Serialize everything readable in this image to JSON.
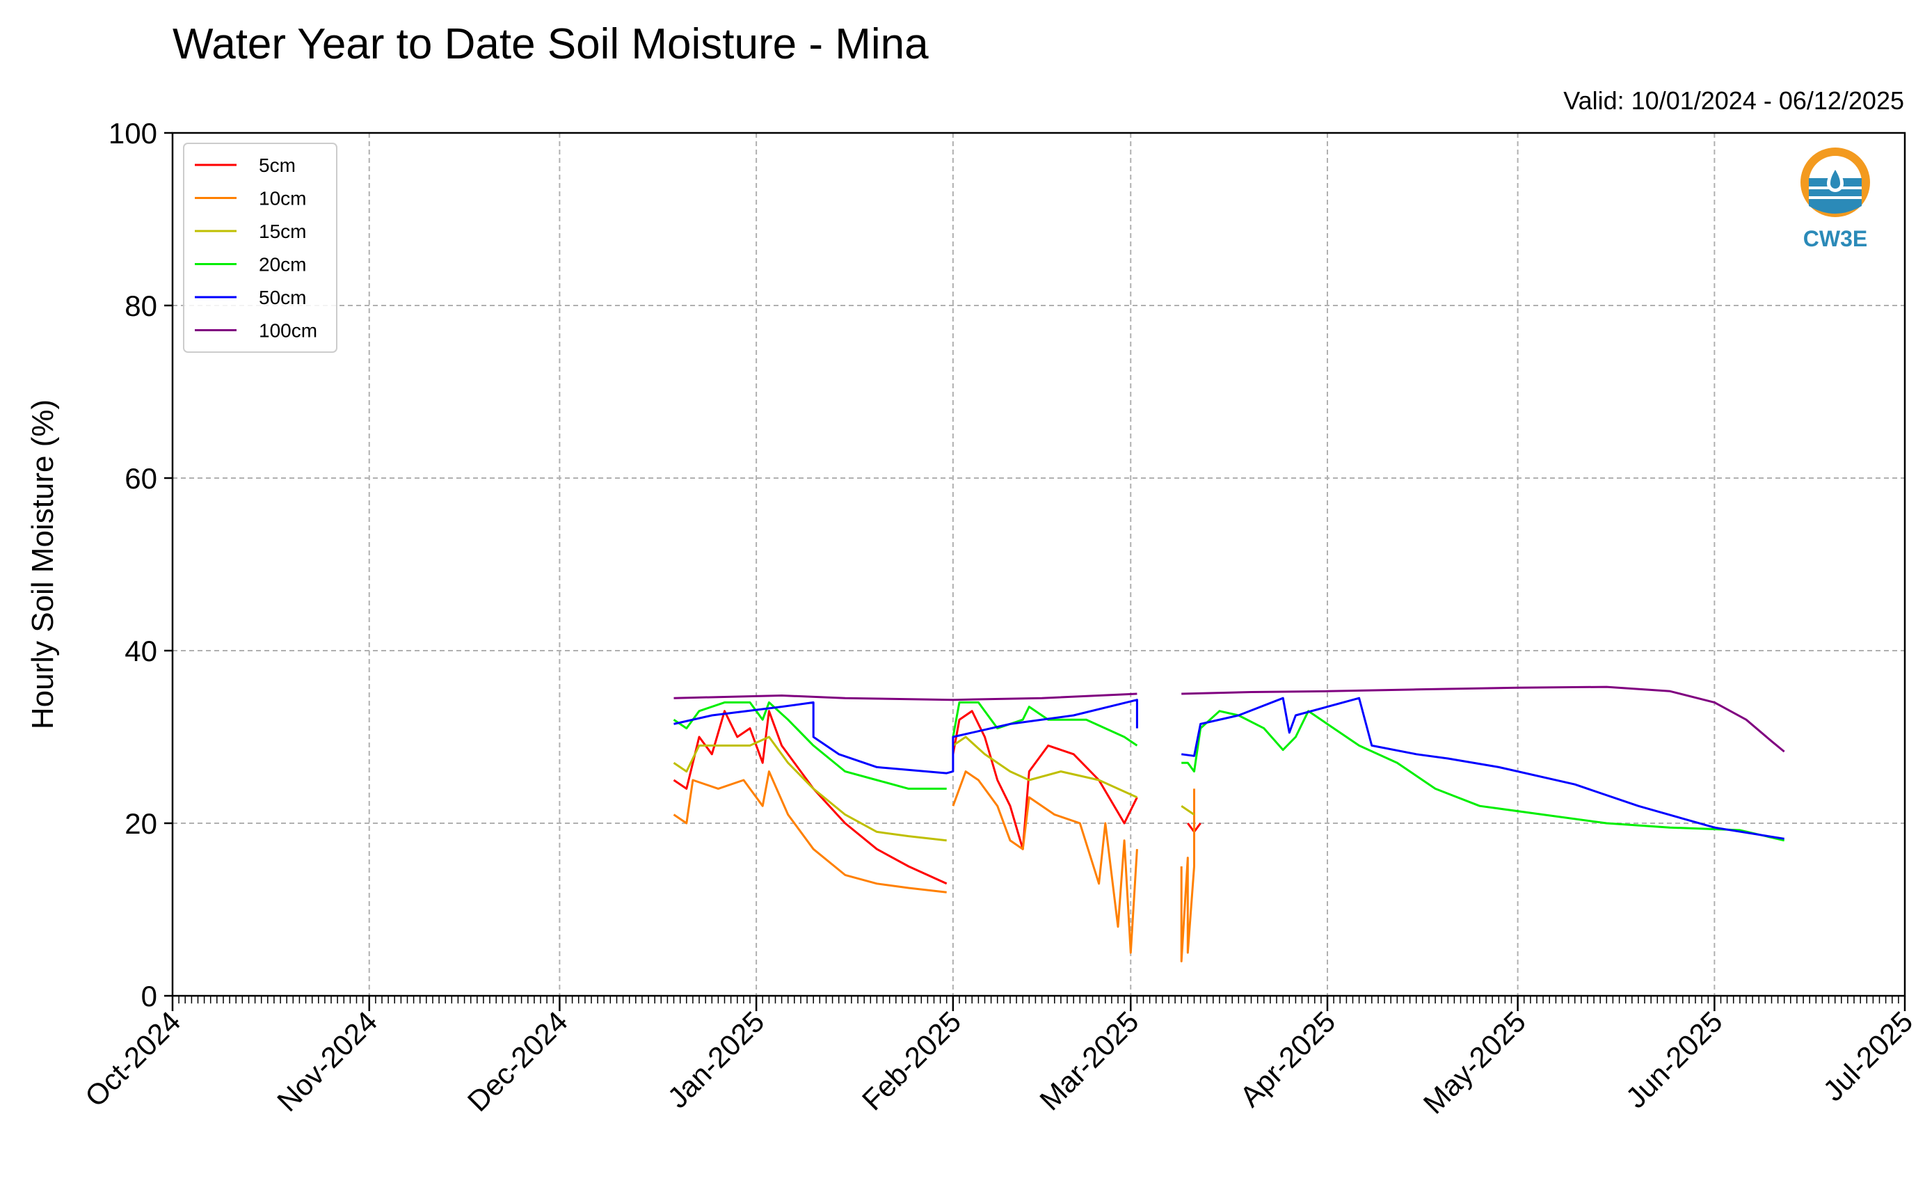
{
  "title": "Water Year to Date Soil Moisture - Mina",
  "valid_text": "Valid: 10/01/2024 - 06/12/2025",
  "logo": {
    "text": "CW3E",
    "icon": "cw3e-logo-icon",
    "colors": {
      "orange": "#f39a1f",
      "blue": "#2b8ab8"
    }
  },
  "chart_data": {
    "type": "line",
    "title": "Water Year to Date Soil Moisture - Mina",
    "xlabel": "",
    "ylabel": "Hourly Soil Moisture (%)",
    "xlim": [
      "2024-10-01",
      "2025-07-01"
    ],
    "ylim": [
      0,
      100
    ],
    "yticks": [
      0,
      20,
      40,
      60,
      80,
      100
    ],
    "xticks": [
      "Oct-2024",
      "Nov-2024",
      "Dec-2024",
      "Jan-2025",
      "Feb-2025",
      "Mar-2025",
      "Apr-2025",
      "May-2025",
      "Jun-2025",
      "Jul-2025"
    ],
    "xtick_dates": [
      "2024-10-01",
      "2024-11-01",
      "2024-12-01",
      "2025-01-01",
      "2025-02-01",
      "2025-03-01",
      "2025-04-01",
      "2025-05-01",
      "2025-06-01",
      "2025-07-01"
    ],
    "grid": true,
    "legend_position": "top-left",
    "series": [
      {
        "name": "5cm",
        "color": "#ff0000",
        "points": [
          [
            "2024-12-19",
            25
          ],
          [
            "2024-12-21",
            24
          ],
          [
            "2024-12-23",
            30
          ],
          [
            "2024-12-25",
            28
          ],
          [
            "2024-12-27",
            33
          ],
          [
            "2024-12-29",
            30
          ],
          [
            "2024-12-31",
            31
          ],
          [
            "2025-01-02",
            27
          ],
          [
            "2025-01-03",
            33
          ],
          [
            "2025-01-05",
            29
          ],
          [
            "2025-01-10",
            24
          ],
          [
            "2025-01-15",
            20
          ],
          [
            "2025-01-20",
            17
          ],
          [
            "2025-01-25",
            15
          ],
          [
            "2025-01-31",
            13
          ],
          null,
          [
            "2025-02-01",
            28
          ],
          [
            "2025-02-02",
            32
          ],
          [
            "2025-02-04",
            33
          ],
          [
            "2025-02-06",
            30
          ],
          [
            "2025-02-08",
            25
          ],
          [
            "2025-02-10",
            22
          ],
          [
            "2025-02-12",
            17
          ],
          [
            "2025-02-13",
            26
          ],
          [
            "2025-02-16",
            29
          ],
          [
            "2025-02-20",
            28
          ],
          [
            "2025-02-24",
            25
          ],
          [
            "2025-02-28",
            20
          ],
          [
            "2025-03-02",
            23
          ],
          null,
          [
            "2025-03-10",
            20
          ],
          [
            "2025-03-11",
            19
          ],
          [
            "2025-03-12",
            20
          ]
        ]
      },
      {
        "name": "10cm",
        "color": "#ff8000",
        "points": [
          [
            "2024-12-19",
            21
          ],
          [
            "2024-12-21",
            20
          ],
          [
            "2024-12-22",
            25
          ],
          [
            "2024-12-26",
            24
          ],
          [
            "2024-12-30",
            25
          ],
          [
            "2025-01-02",
            22
          ],
          [
            "2025-01-03",
            26
          ],
          [
            "2025-01-06",
            21
          ],
          [
            "2025-01-10",
            17
          ],
          [
            "2025-01-15",
            14
          ],
          [
            "2025-01-20",
            13
          ],
          [
            "2025-01-25",
            12.5
          ],
          [
            "2025-01-31",
            12
          ],
          null,
          [
            "2025-02-01",
            22
          ],
          [
            "2025-02-03",
            26
          ],
          [
            "2025-02-05",
            25
          ],
          [
            "2025-02-08",
            22
          ],
          [
            "2025-02-10",
            18
          ],
          [
            "2025-02-12",
            17
          ],
          [
            "2025-02-13",
            23
          ],
          [
            "2025-02-17",
            21
          ],
          [
            "2025-02-21",
            20
          ],
          [
            "2025-02-24",
            13
          ],
          [
            "2025-02-25",
            20
          ],
          [
            "2025-02-27",
            8
          ],
          [
            "2025-02-28",
            18
          ],
          [
            "2025-03-01",
            5
          ],
          [
            "2025-03-02",
            17
          ],
          null,
          [
            "2025-03-09",
            15
          ],
          [
            "2025-03-09",
            4
          ],
          [
            "2025-03-10",
            16
          ],
          [
            "2025-03-10",
            5
          ],
          [
            "2025-03-11",
            15
          ],
          [
            "2025-03-11",
            24
          ]
        ]
      },
      {
        "name": "15cm",
        "color": "#bfbf00",
        "points": [
          [
            "2024-12-19",
            27
          ],
          [
            "2024-12-21",
            26
          ],
          [
            "2024-12-23",
            29
          ],
          [
            "2024-12-27",
            29
          ],
          [
            "2024-12-31",
            29
          ],
          [
            "2025-01-03",
            30
          ],
          [
            "2025-01-06",
            27
          ],
          [
            "2025-01-10",
            24
          ],
          [
            "2025-01-15",
            21
          ],
          [
            "2025-01-20",
            19
          ],
          [
            "2025-01-25",
            18.5
          ],
          [
            "2025-01-31",
            18
          ],
          null,
          [
            "2025-02-01",
            29
          ],
          [
            "2025-02-03",
            30
          ],
          [
            "2025-02-06",
            28
          ],
          [
            "2025-02-10",
            26
          ],
          [
            "2025-02-13",
            25
          ],
          [
            "2025-02-18",
            26
          ],
          [
            "2025-02-24",
            25
          ],
          [
            "2025-03-02",
            23
          ],
          null,
          [
            "2025-03-09",
            22
          ],
          [
            "2025-03-11",
            21
          ]
        ]
      },
      {
        "name": "20cm",
        "color": "#00ee00",
        "points": [
          [
            "2024-12-19",
            32
          ],
          [
            "2024-12-21",
            31
          ],
          [
            "2024-12-23",
            33
          ],
          [
            "2024-12-27",
            34
          ],
          [
            "2024-12-31",
            34
          ],
          [
            "2025-01-02",
            32
          ],
          [
            "2025-01-03",
            34
          ],
          [
            "2025-01-06",
            32
          ],
          [
            "2025-01-10",
            29
          ],
          [
            "2025-01-15",
            26
          ],
          [
            "2025-01-20",
            25
          ],
          [
            "2025-01-25",
            24
          ],
          [
            "2025-01-31",
            24
          ],
          null,
          [
            "2025-02-01",
            30
          ],
          [
            "2025-02-02",
            34
          ],
          [
            "2025-02-05",
            34
          ],
          [
            "2025-02-08",
            31
          ],
          [
            "2025-02-12",
            32
          ],
          [
            "2025-02-13",
            33.5
          ],
          [
            "2025-02-16",
            32
          ],
          [
            "2025-02-22",
            32
          ],
          [
            "2025-02-28",
            30
          ],
          [
            "2025-03-02",
            29
          ],
          null,
          [
            "2025-03-09",
            27
          ],
          [
            "2025-03-10",
            27
          ],
          [
            "2025-03-11",
            26
          ],
          [
            "2025-03-12",
            31
          ],
          [
            "2025-03-15",
            33
          ],
          [
            "2025-03-18",
            32.5
          ],
          [
            "2025-03-22",
            31
          ],
          [
            "2025-03-25",
            28.5
          ],
          [
            "2025-03-27",
            30
          ],
          [
            "2025-03-29",
            33
          ],
          [
            "2025-04-02",
            31
          ],
          [
            "2025-04-06",
            29
          ],
          [
            "2025-04-12",
            27
          ],
          [
            "2025-04-18",
            24
          ],
          [
            "2025-04-25",
            22
          ],
          [
            "2025-05-05",
            21
          ],
          [
            "2025-05-15",
            20
          ],
          [
            "2025-05-25",
            19.5
          ],
          [
            "2025-06-05",
            19.2
          ],
          [
            "2025-06-12",
            18
          ]
        ]
      },
      {
        "name": "50cm",
        "color": "#0000ff",
        "points": [
          [
            "2024-12-19",
            31.5
          ],
          [
            "2024-12-25",
            32.5
          ],
          [
            "2025-01-05",
            33.5
          ],
          [
            "2025-01-10",
            34
          ],
          [
            "2025-01-10",
            30
          ],
          [
            "2025-01-14",
            28
          ],
          [
            "2025-01-20",
            26.5
          ],
          [
            "2025-01-31",
            25.8
          ],
          [
            "2025-02-01",
            26
          ],
          [
            "2025-02-01",
            30
          ],
          [
            "2025-02-10",
            31.5
          ],
          [
            "2025-02-20",
            32.5
          ],
          [
            "2025-03-02",
            34.3
          ],
          [
            "2025-03-02",
            31
          ],
          null,
          [
            "2025-03-09",
            28
          ],
          [
            "2025-03-11",
            27.8
          ],
          [
            "2025-03-12",
            31.5
          ],
          [
            "2025-03-18",
            32.5
          ],
          [
            "2025-03-25",
            34.5
          ],
          [
            "2025-03-26",
            30.5
          ],
          [
            "2025-03-27",
            32.5
          ],
          [
            "2025-04-01",
            33.5
          ],
          [
            "2025-04-06",
            34.5
          ],
          [
            "2025-04-08",
            29
          ],
          [
            "2025-04-15",
            28
          ],
          [
            "2025-04-20",
            27.5
          ],
          [
            "2025-04-28",
            26.5
          ],
          [
            "2025-05-10",
            24.5
          ],
          [
            "2025-05-20",
            22
          ],
          [
            "2025-06-01",
            19.5
          ],
          [
            "2025-06-12",
            18.2
          ]
        ]
      },
      {
        "name": "100cm",
        "color": "#800080",
        "points": [
          [
            "2024-12-19",
            34.5
          ],
          [
            "2025-01-05",
            34.8
          ],
          [
            "2025-01-15",
            34.5
          ],
          [
            "2025-02-01",
            34.3
          ],
          [
            "2025-02-15",
            34.5
          ],
          [
            "2025-03-02",
            35
          ],
          null,
          [
            "2025-03-09",
            35
          ],
          [
            "2025-03-20",
            35.2
          ],
          [
            "2025-04-01",
            35.3
          ],
          [
            "2025-04-15",
            35.5
          ],
          [
            "2025-05-01",
            35.7
          ],
          [
            "2025-05-15",
            35.8
          ],
          [
            "2025-05-25",
            35.3
          ],
          [
            "2025-06-01",
            34
          ],
          [
            "2025-06-06",
            32
          ],
          [
            "2025-06-10",
            29.5
          ],
          [
            "2025-06-12",
            28.3
          ]
        ]
      }
    ]
  }
}
